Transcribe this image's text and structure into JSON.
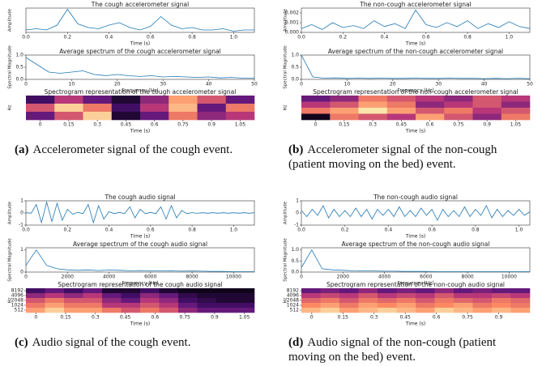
{
  "chart_data": [
    {
      "type": "line",
      "title": "The cough accelerometer signal",
      "xlabel": "Time (s)",
      "ylabel": "Amplitude",
      "color": "#1f77b4",
      "xlim": [
        0,
        1.1
      ],
      "ylim": [
        0,
        1
      ],
      "xticks": [
        {
          "value": 0,
          "label": "0.0"
        },
        0.2,
        0.4,
        0.6,
        0.8,
        {
          "value": 1,
          "label": "1.0"
        }
      ],
      "yticks": [],
      "x": [
        0,
        0.05,
        0.1,
        0.15,
        0.2,
        0.25,
        0.3,
        0.35,
        0.4,
        0.45,
        0.5,
        0.55,
        0.6,
        0.65,
        0.7,
        0.75,
        0.8,
        0.85,
        0.9,
        0.95,
        1,
        1.05,
        1.1
      ],
      "values": [
        0.1,
        0.15,
        0.1,
        0.3,
        0.95,
        0.35,
        0.2,
        0.15,
        0.3,
        0.4,
        0.2,
        0.1,
        0.25,
        0.65,
        0.3,
        0.15,
        0.2,
        0.1,
        0.1,
        0.15,
        0.05,
        0.1,
        0.1
      ]
    },
    {
      "type": "line",
      "title": "Average spectrum of the cough accelerometer signal",
      "xlabel": "Frequency (Hz)",
      "ylabel": "Spectral Magnitude",
      "color": "#1f77b4",
      "xlim": [
        0,
        50
      ],
      "ylim": [
        0,
        1
      ],
      "xticks": [
        0,
        10,
        20,
        30,
        40,
        50
      ],
      "yticks": [
        {
          "value": 0,
          "label": "0.0"
        },
        0.5,
        {
          "value": 1,
          "label": "1.0"
        }
      ],
      "x": [
        0,
        2.5,
        5,
        7.5,
        10,
        12.5,
        15,
        17.5,
        20,
        22.5,
        25,
        27.5,
        30,
        32.5,
        35,
        37.5,
        40,
        42.5,
        45,
        47.5,
        50
      ],
      "values": [
        0.9,
        0.6,
        0.3,
        0.25,
        0.3,
        0.35,
        0.2,
        0.15,
        0.2,
        0.15,
        0.12,
        0.15,
        0.1,
        0.12,
        0.1,
        0.08,
        0.1,
        0.06,
        0.08,
        0.05,
        0.05
      ]
    },
    {
      "type": "heatmap",
      "title": "Spectrogram representation of the cough accelerometer signal",
      "xlabel": "Time (s)",
      "ylabel": "Hz",
      "xlim": [
        -0.075,
        1.125
      ],
      "xticks": [
        0,
        0.15,
        0.3,
        0.45,
        0.6,
        0.75,
        0.9,
        1.05
      ],
      "yticks": [],
      "values": [
        [
          0.2,
          0.5,
          0.3,
          0.1,
          0.4,
          0.8,
          0.6,
          0.3
        ],
        [
          0.6,
          0.9,
          0.7,
          0.2,
          0.5,
          0.85,
          0.3,
          0.7
        ],
        [
          0.3,
          0.6,
          0.9,
          0.1,
          0.3,
          0.7,
          0.4,
          0.5
        ]
      ]
    },
    {
      "type": "line",
      "title": "The non-cough accelerometer signal",
      "xlabel": "Time (s)",
      "ylabel": "Amplitude",
      "color": "#1f77b4",
      "xlim": [
        0,
        1.1
      ],
      "ylim": [
        0,
        0.0025
      ],
      "xticks": [
        {
          "value": 0,
          "label": "0.0"
        },
        0.2,
        0.4,
        0.6,
        0.8,
        {
          "value": 1,
          "label": "1.0"
        }
      ],
      "yticks": [
        {
          "value": 0,
          "label": "0.000"
        },
        0.001,
        0.002
      ],
      "x": [
        0,
        0.05,
        0.1,
        0.15,
        0.2,
        0.25,
        0.3,
        0.35,
        0.4,
        0.45,
        0.5,
        0.55,
        0.6,
        0.65,
        0.7,
        0.75,
        0.8,
        0.85,
        0.9,
        0.95,
        1,
        1.05,
        1.1
      ],
      "values": [
        0.0004,
        0.0008,
        0.0003,
        0.001,
        0.0005,
        0.0007,
        0.0004,
        0.0012,
        0.0006,
        0.0009,
        0.0004,
        0.0023,
        0.0008,
        0.0005,
        0.001,
        0.0006,
        0.0012,
        0.0004,
        0.0009,
        0.0005,
        0.0011,
        0.0006,
        0.0004
      ]
    },
    {
      "type": "line",
      "title": "Average spectrum of the non-cough accelerometer signal",
      "xlabel": "Frequency (Hz)",
      "ylabel": "Spectral Magnitude",
      "color": "#1f77b4",
      "xlim": [
        0,
        50
      ],
      "ylim": [
        0,
        1
      ],
      "xticks": [
        0,
        10,
        20,
        30,
        40,
        50
      ],
      "yticks": [
        {
          "value": 0,
          "label": "0.0"
        },
        0.5,
        {
          "value": 1,
          "label": "1.0"
        }
      ],
      "x": [
        0,
        2.5,
        5,
        7.5,
        10,
        12.5,
        15,
        17.5,
        20,
        22.5,
        25,
        27.5,
        30,
        32.5,
        35,
        37.5,
        40,
        42.5,
        45,
        47.5,
        50
      ],
      "values": [
        1,
        0.1,
        0.05,
        0.06,
        0.04,
        0.05,
        0.04,
        0.05,
        0.04,
        0.04,
        0.05,
        0.04,
        0.04,
        0.05,
        0.04,
        0.04,
        0.03,
        0.04,
        0.03,
        0.04,
        0.03
      ]
    },
    {
      "type": "heatmap",
      "title": "Spectrogram representation of the non-cough accelerometer signal",
      "xlabel": "Time (s)",
      "ylabel": "Hz",
      "xlim": [
        -0.075,
        1.125
      ],
      "xticks": [
        0,
        0.15,
        0.3,
        0.45,
        0.6,
        0.75,
        0.9,
        1.05
      ],
      "yticks": [],
      "values": [
        [
          0.3,
          0.4,
          0.7,
          0.6,
          0.5,
          0.4,
          0.6,
          0.5
        ],
        [
          0.5,
          0.6,
          0.8,
          0.7,
          0.4,
          0.5,
          0.6,
          0.4
        ],
        [
          0.7,
          0.8,
          0.95,
          0.8,
          0.6,
          0.7,
          0.5,
          0.6
        ],
        [
          0.05,
          0.7,
          0.6,
          0.5,
          0.8,
          0.6,
          0.4,
          0.7
        ]
      ]
    },
    {
      "type": "line",
      "title": "The cough audio signal",
      "xlabel": "Time (s)",
      "ylabel": "Amplitude",
      "color": "#1f77b4",
      "xlim": [
        0,
        1.1
      ],
      "ylim": [
        -1,
        1
      ],
      "xticks": [
        {
          "value": 0,
          "label": "0.0"
        },
        0.2,
        0.4,
        0.6,
        0.8,
        {
          "value": 1,
          "label": "1.0"
        }
      ],
      "yticks": [
        -1,
        0,
        1
      ],
      "x": [
        0,
        0.025,
        0.05,
        0.075,
        0.1,
        0.125,
        0.15,
        0.175,
        0.2,
        0.225,
        0.25,
        0.275,
        0.3,
        0.325,
        0.35,
        0.375,
        0.4,
        0.425,
        0.45,
        0.475,
        0.5,
        0.525,
        0.55,
        0.575,
        0.6,
        0.625,
        0.65,
        0.675,
        0.7,
        0.725,
        0.75,
        0.775,
        0.8,
        0.825,
        0.85,
        0.875,
        0.9,
        0.925,
        0.95,
        0.975,
        1,
        1.025,
        1.05,
        1.075,
        1.1
      ],
      "values": [
        0.02,
        -0.02,
        0.7,
        -0.8,
        0.9,
        -0.7,
        0.8,
        -0.6,
        0.3,
        -0.1,
        0.05,
        -0.05,
        0.7,
        -0.8,
        0.6,
        -0.5,
        0.1,
        -0.05,
        0.05,
        -0.05,
        0.5,
        -0.4,
        0.3,
        -0.05,
        0.05,
        -0.05,
        0.5,
        -0.5,
        0.6,
        -0.4,
        0.2,
        -0.05,
        0.03,
        -0.03,
        0.02,
        -0.02,
        0.02,
        -0.02,
        0.02,
        -0.02,
        0.02,
        -0.02,
        0.02,
        -0.02,
        0.02
      ]
    },
    {
      "type": "line",
      "title": "Average spectrum of the cough audio signal",
      "xlabel": "Frequency (Hz)",
      "ylabel": "Spectral Magnitude",
      "color": "#1f77b4",
      "xlim": [
        0,
        11000
      ],
      "ylim": [
        0,
        1.1
      ],
      "xticks": [
        0,
        2000,
        4000,
        6000,
        8000,
        10000
      ],
      "yticks": [
        0,
        1
      ],
      "x": [
        0,
        500,
        1000,
        1500,
        2000,
        2500,
        3000,
        3500,
        4000,
        4500,
        5000,
        5500,
        6000,
        6500,
        7000,
        7500,
        8000,
        8500,
        9000,
        9500,
        10000,
        10500,
        11000
      ],
      "values": [
        0.3,
        1,
        0.3,
        0.15,
        0.1,
        0.08,
        0.1,
        0.07,
        0.09,
        0.08,
        0.06,
        0.07,
        0.06,
        0.05,
        0.06,
        0.04,
        0.05,
        0.04,
        0.03,
        0.03,
        0.02,
        0.02,
        0.02
      ]
    },
    {
      "type": "heatmap",
      "title": "Spectrogram representation of the cough audio signal",
      "xlabel": "Time (s)",
      "ylabel": "Hz",
      "ylog": true,
      "ylim": [
        362,
        11585
      ],
      "xlim": [
        -0.05,
        1.1
      ],
      "xticks": [
        0,
        0.15,
        0.3,
        0.45,
        0.6,
        0.75,
        0.9,
        1.05
      ],
      "yticks": [
        512,
        1024,
        2048,
        4096,
        8192
      ],
      "values": [
        [
          0.2,
          0.3,
          0.2,
          0.3,
          0.1,
          0.1,
          0.2,
          0.1,
          0.05,
          0.05,
          0.05,
          0.05
        ],
        [
          0.4,
          0.5,
          0.4,
          0.5,
          0.3,
          0.2,
          0.4,
          0.3,
          0.15,
          0.1,
          0.1,
          0.1
        ],
        [
          0.6,
          0.7,
          0.6,
          0.6,
          0.4,
          0.3,
          0.5,
          0.4,
          0.2,
          0.15,
          0.1,
          0.1
        ],
        [
          0.7,
          0.8,
          0.7,
          0.7,
          0.5,
          0.5,
          0.6,
          0.5,
          0.3,
          0.2,
          0.2,
          0.2
        ],
        [
          0.8,
          0.9,
          0.8,
          0.8,
          0.7,
          0.6,
          0.7,
          0.6,
          0.4,
          0.3,
          0.3,
          0.3
        ]
      ]
    },
    {
      "type": "line",
      "title": "The non-cough audio signal",
      "xlabel": "Time (s)",
      "ylabel": "Amplitude",
      "color": "#1f77b4",
      "xlim": [
        0,
        1.05
      ],
      "ylim": [
        -1,
        1
      ],
      "xticks": [
        {
          "value": 0,
          "label": "0.0"
        },
        0.2,
        0.4,
        0.6,
        0.8,
        {
          "value": 1,
          "label": "1.0"
        }
      ],
      "yticks": [
        -1,
        0,
        1
      ],
      "x": [
        0,
        0.025,
        0.05,
        0.075,
        0.1,
        0.125,
        0.15,
        0.175,
        0.2,
        0.225,
        0.25,
        0.275,
        0.3,
        0.325,
        0.35,
        0.375,
        0.4,
        0.425,
        0.45,
        0.475,
        0.5,
        0.525,
        0.55,
        0.575,
        0.6,
        0.625,
        0.65,
        0.675,
        0.7,
        0.725,
        0.75,
        0.775,
        0.8,
        0.825,
        0.85,
        0.875,
        0.9,
        0.925,
        0.95,
        0.975,
        1,
        1.025,
        1.05
      ],
      "values": [
        0.2,
        -0.3,
        0.3,
        -0.2,
        0.6,
        -0.4,
        0.3,
        -0.3,
        0.2,
        -0.3,
        0.4,
        -0.3,
        0.3,
        -0.5,
        0.3,
        -0.2,
        0.3,
        -0.3,
        0.5,
        -0.3,
        0.2,
        -0.3,
        0.4,
        -0.2,
        0.3,
        -0.6,
        0.3,
        -0.3,
        0.2,
        -0.3,
        0.5,
        -0.3,
        0.3,
        -0.2,
        0.6,
        -0.4,
        0.3,
        -0.3,
        0.2,
        -0.2,
        0.3,
        -0.2,
        0.1
      ]
    },
    {
      "type": "line",
      "title": "Average spectrum of the non-cough audio signal",
      "xlabel": "Frequency (Hz)",
      "ylabel": "Spectral Magnitude",
      "color": "#1f77b4",
      "xlim": [
        0,
        11000
      ],
      "ylim": [
        0,
        1.1
      ],
      "xticks": [
        0,
        2000,
        4000,
        6000,
        8000,
        10000
      ],
      "yticks": [
        {
          "value": 0,
          "label": "0.0"
        },
        0.5,
        {
          "value": 1,
          "label": "1.0"
        }
      ],
      "x": [
        0,
        500,
        1000,
        1500,
        2000,
        2500,
        3000,
        3500,
        4000,
        4500,
        5000,
        5500,
        6000,
        6500,
        7000,
        7500,
        8000,
        8500,
        9000,
        9500,
        10000,
        10500,
        11000
      ],
      "values": [
        0.2,
        1,
        0.15,
        0.1,
        0.08,
        0.06,
        0.05,
        0.05,
        0.04,
        0.04,
        0.03,
        0.03,
        0.03,
        0.02,
        0.02,
        0.02,
        0.02,
        0.02,
        0.02,
        0.02,
        0.02,
        0.02,
        0.02
      ]
    },
    {
      "type": "heatmap",
      "title": "Spectrogram representation of the non-cough audio signal",
      "xlabel": "Time (s)",
      "ylabel": "Hz",
      "ylog": true,
      "ylim": [
        362,
        11585
      ],
      "xlim": [
        -0.05,
        1.05
      ],
      "xticks": [
        0,
        0.15,
        0.3,
        0.45,
        0.6,
        0.75,
        0.9
      ],
      "yticks": [
        512,
        1024,
        2048,
        4096,
        8192
      ],
      "values": [
        [
          0.3,
          0.35,
          0.3,
          0.4,
          0.3,
          0.35,
          0.3,
          0.4,
          0.3,
          0.35,
          0.3,
          0.3
        ],
        [
          0.5,
          0.55,
          0.5,
          0.6,
          0.5,
          0.55,
          0.5,
          0.6,
          0.5,
          0.5,
          0.55,
          0.5
        ],
        [
          0.65,
          0.7,
          0.6,
          0.7,
          0.65,
          0.7,
          0.6,
          0.7,
          0.65,
          0.6,
          0.7,
          0.65
        ],
        [
          0.75,
          0.8,
          0.7,
          0.8,
          0.75,
          0.8,
          0.7,
          0.75,
          0.8,
          0.7,
          0.75,
          0.7
        ],
        [
          0.85,
          0.9,
          0.8,
          0.85,
          0.9,
          0.85,
          0.8,
          0.9,
          0.85,
          0.8,
          0.85,
          0.8
        ]
      ]
    }
  ],
  "captions": [
    {
      "label": "(a)",
      "text": "Accelerometer signal of the cough event."
    },
    {
      "label": "(b)",
      "text": "Accelerometer signal of the non-cough (patient moving on the bed) event."
    },
    {
      "label": "(c)",
      "text": "Audio signal of the cough event."
    },
    {
      "label": "(d)",
      "text": "Audio signal of the non-cough (patient moving on the bed) event."
    }
  ]
}
